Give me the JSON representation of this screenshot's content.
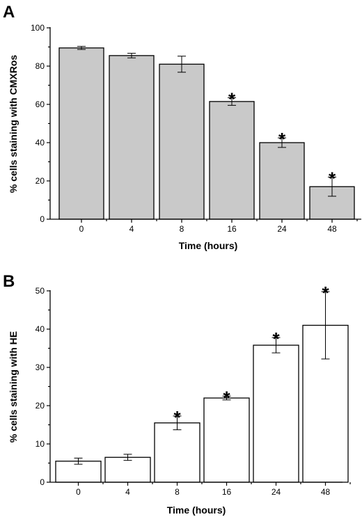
{
  "colors": {
    "bar_fill_a": "#c9c9c9",
    "bar_fill_b": "#ffffff",
    "axis": "#000000"
  },
  "chart_data": [
    {
      "type": "bar",
      "panel": "A",
      "categories": [
        "0",
        "4",
        "8",
        "16",
        "24",
        "48"
      ],
      "values": [
        89.5,
        85.5,
        81,
        61.5,
        40,
        17
      ],
      "errors": [
        0.8,
        1.2,
        4.2,
        2,
        2.5,
        5
      ],
      "significant": [
        false,
        false,
        false,
        true,
        true,
        true
      ],
      "marker_text": "*",
      "xlabel": "Time (hours)",
      "ylabel": "% cells staining with  CMXRos",
      "ylim": [
        0,
        100
      ],
      "yticks": [
        0,
        20,
        40,
        60,
        80,
        100
      ],
      "grid": false
    },
    {
      "type": "bar",
      "panel": "B",
      "categories": [
        "0",
        "4",
        "8",
        "16",
        "24",
        "48"
      ],
      "values": [
        5.5,
        6.5,
        15.5,
        22,
        35.8,
        41
      ],
      "errors": [
        0.8,
        0.8,
        1.8,
        0.5,
        2,
        8.8
      ],
      "significant": [
        false,
        false,
        true,
        true,
        true,
        true
      ],
      "marker_text": "*",
      "xlabel": "Time (hours)",
      "ylabel": "% cells staining with  HE",
      "ylim": [
        0,
        50
      ],
      "yticks": [
        0,
        10,
        20,
        30,
        40,
        50
      ],
      "grid": false
    }
  ]
}
